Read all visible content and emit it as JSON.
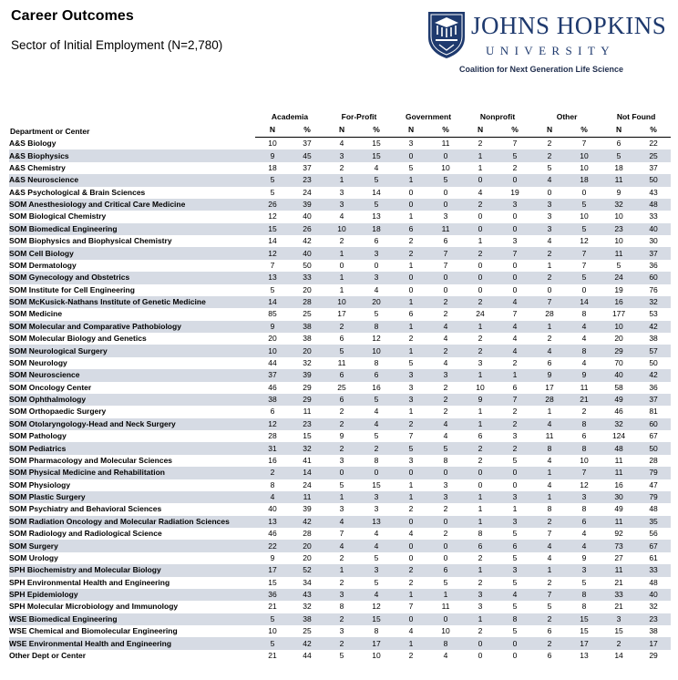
{
  "header": {
    "title": "Career Outcomes",
    "subtitle": "Sector of Initial Employment (N=2,780)"
  },
  "logo": {
    "name": "JOHNS HOPKINS",
    "university": "UNIVERSITY",
    "coalition": "Coalition for Next Generation Life Science",
    "shield_color": "#1f3a6e"
  },
  "colors": {
    "row_stripe": "#d6dbe4",
    "brand_navy": "#1f3a6e"
  },
  "table": {
    "dept_header": "Department or Center",
    "groups": [
      "Academia",
      "For-Profit",
      "Government",
      "Nonprofit",
      "Other",
      "Not Found"
    ],
    "sub_headers": [
      "N",
      "%",
      "N",
      "%",
      "N",
      "%",
      "N",
      "%",
      "N",
      "%",
      "N",
      "%"
    ],
    "rows": [
      {
        "dept": "A&S Biology",
        "values": [
          "10",
          "37",
          "4",
          "15",
          "3",
          "11",
          "2",
          "7",
          "2",
          "7",
          "6",
          "22"
        ]
      },
      {
        "dept": "A&S Biophysics",
        "values": [
          "9",
          "45",
          "3",
          "15",
          "0",
          "0",
          "1",
          "5",
          "2",
          "10",
          "5",
          "25"
        ]
      },
      {
        "dept": "A&S Chemistry",
        "values": [
          "18",
          "37",
          "2",
          "4",
          "5",
          "10",
          "1",
          "2",
          "5",
          "10",
          "18",
          "37"
        ]
      },
      {
        "dept": "A&S Neuroscience",
        "values": [
          "5",
          "23",
          "1",
          "5",
          "1",
          "5",
          "0",
          "0",
          "4",
          "18",
          "11",
          "50"
        ]
      },
      {
        "dept": "A&S Psychological & Brain Sciences",
        "values": [
          "5",
          "24",
          "3",
          "14",
          "0",
          "0",
          "4",
          "19",
          "0",
          "0",
          "9",
          "43"
        ]
      },
      {
        "dept": "SOM Anesthesiology and Critical Care Medicine",
        "values": [
          "26",
          "39",
          "3",
          "5",
          "0",
          "0",
          "2",
          "3",
          "3",
          "5",
          "32",
          "48"
        ]
      },
      {
        "dept": "SOM Biological Chemistry",
        "values": [
          "12",
          "40",
          "4",
          "13",
          "1",
          "3",
          "0",
          "0",
          "3",
          "10",
          "10",
          "33"
        ]
      },
      {
        "dept": "SOM Biomedical Engineering",
        "values": [
          "15",
          "26",
          "10",
          "18",
          "6",
          "11",
          "0",
          "0",
          "3",
          "5",
          "23",
          "40"
        ]
      },
      {
        "dept": "SOM Biophysics and Biophysical Chemistry",
        "values": [
          "14",
          "42",
          "2",
          "6",
          "2",
          "6",
          "1",
          "3",
          "4",
          "12",
          "10",
          "30"
        ]
      },
      {
        "dept": "SOM Cell Biology",
        "values": [
          "12",
          "40",
          "1",
          "3",
          "2",
          "7",
          "2",
          "7",
          "2",
          "7",
          "11",
          "37"
        ]
      },
      {
        "dept": "SOM Dermatology",
        "values": [
          "7",
          "50",
          "0",
          "0",
          "1",
          "7",
          "0",
          "0",
          "1",
          "7",
          "5",
          "36"
        ]
      },
      {
        "dept": "SOM Gynecology and Obstetrics",
        "values": [
          "13",
          "33",
          "1",
          "3",
          "0",
          "0",
          "0",
          "0",
          "2",
          "5",
          "24",
          "60"
        ]
      },
      {
        "dept": "SOM Institute for Cell Engineering",
        "values": [
          "5",
          "20",
          "1",
          "4",
          "0",
          "0",
          "0",
          "0",
          "0",
          "0",
          "19",
          "76"
        ]
      },
      {
        "dept": "SOM McKusick-Nathans Institute of Genetic Medicine",
        "values": [
          "14",
          "28",
          "10",
          "20",
          "1",
          "2",
          "2",
          "4",
          "7",
          "14",
          "16",
          "32"
        ]
      },
      {
        "dept": "SOM Medicine",
        "values": [
          "85",
          "25",
          "17",
          "5",
          "6",
          "2",
          "24",
          "7",
          "28",
          "8",
          "177",
          "53"
        ]
      },
      {
        "dept": "SOM Molecular and Comparative Pathobiology",
        "values": [
          "9",
          "38",
          "2",
          "8",
          "1",
          "4",
          "1",
          "4",
          "1",
          "4",
          "10",
          "42"
        ]
      },
      {
        "dept": "SOM Molecular Biology and Genetics",
        "values": [
          "20",
          "38",
          "6",
          "12",
          "2",
          "4",
          "2",
          "4",
          "2",
          "4",
          "20",
          "38"
        ]
      },
      {
        "dept": "SOM Neurological Surgery",
        "values": [
          "10",
          "20",
          "5",
          "10",
          "1",
          "2",
          "2",
          "4",
          "4",
          "8",
          "29",
          "57"
        ]
      },
      {
        "dept": "SOM Neurology",
        "values": [
          "44",
          "32",
          "11",
          "8",
          "5",
          "4",
          "3",
          "2",
          "6",
          "4",
          "70",
          "50"
        ]
      },
      {
        "dept": "SOM Neuroscience",
        "values": [
          "37",
          "39",
          "6",
          "6",
          "3",
          "3",
          "1",
          "1",
          "9",
          "9",
          "40",
          "42"
        ]
      },
      {
        "dept": "SOM Oncology Center",
        "values": [
          "46",
          "29",
          "25",
          "16",
          "3",
          "2",
          "10",
          "6",
          "17",
          "11",
          "58",
          "36"
        ]
      },
      {
        "dept": "SOM Ophthalmology",
        "values": [
          "38",
          "29",
          "6",
          "5",
          "3",
          "2",
          "9",
          "7",
          "28",
          "21",
          "49",
          "37"
        ]
      },
      {
        "dept": "SOM Orthopaedic Surgery",
        "values": [
          "6",
          "11",
          "2",
          "4",
          "1",
          "2",
          "1",
          "2",
          "1",
          "2",
          "46",
          "81"
        ]
      },
      {
        "dept": "SOM Otolaryngology-Head and Neck Surgery",
        "values": [
          "12",
          "23",
          "2",
          "4",
          "2",
          "4",
          "1",
          "2",
          "4",
          "8",
          "32",
          "60"
        ]
      },
      {
        "dept": "SOM Pathology",
        "values": [
          "28",
          "15",
          "9",
          "5",
          "7",
          "4",
          "6",
          "3",
          "11",
          "6",
          "124",
          "67"
        ]
      },
      {
        "dept": "SOM Pediatrics",
        "values": [
          "31",
          "32",
          "2",
          "2",
          "5",
          "5",
          "2",
          "2",
          "8",
          "8",
          "48",
          "50"
        ]
      },
      {
        "dept": "SOM Pharmacology and Molecular Sciences",
        "values": [
          "16",
          "41",
          "3",
          "8",
          "3",
          "8",
          "2",
          "5",
          "4",
          "10",
          "11",
          "28"
        ]
      },
      {
        "dept": "SOM Physical Medicine and Rehabilitation",
        "values": [
          "2",
          "14",
          "0",
          "0",
          "0",
          "0",
          "0",
          "0",
          "1",
          "7",
          "11",
          "79"
        ]
      },
      {
        "dept": "SOM Physiology",
        "values": [
          "8",
          "24",
          "5",
          "15",
          "1",
          "3",
          "0",
          "0",
          "4",
          "12",
          "16",
          "47"
        ]
      },
      {
        "dept": "SOM Plastic Surgery",
        "values": [
          "4",
          "11",
          "1",
          "3",
          "1",
          "3",
          "1",
          "3",
          "1",
          "3",
          "30",
          "79"
        ]
      },
      {
        "dept": "SOM Psychiatry and Behavioral Sciences",
        "values": [
          "40",
          "39",
          "3",
          "3",
          "2",
          "2",
          "1",
          "1",
          "8",
          "8",
          "49",
          "48"
        ]
      },
      {
        "dept": "SOM Radiation Oncology and Molecular Radiation Sciences",
        "values": [
          "13",
          "42",
          "4",
          "13",
          "0",
          "0",
          "1",
          "3",
          "2",
          "6",
          "11",
          "35"
        ]
      },
      {
        "dept": "SOM Radiology and Radiological Science",
        "values": [
          "46",
          "28",
          "7",
          "4",
          "4",
          "2",
          "8",
          "5",
          "7",
          "4",
          "92",
          "56"
        ]
      },
      {
        "dept": "SOM Surgery",
        "values": [
          "22",
          "20",
          "4",
          "4",
          "0",
          "0",
          "6",
          "6",
          "4",
          "4",
          "73",
          "67"
        ]
      },
      {
        "dept": "SOM Urology",
        "values": [
          "9",
          "20",
          "2",
          "5",
          "0",
          "0",
          "2",
          "5",
          "4",
          "9",
          "27",
          "61"
        ]
      },
      {
        "dept": "SPH Biochemistry and Molecular Biology",
        "values": [
          "17",
          "52",
          "1",
          "3",
          "2",
          "6",
          "1",
          "3",
          "1",
          "3",
          "11",
          "33"
        ]
      },
      {
        "dept": "SPH Environmental Health and Engineering",
        "values": [
          "15",
          "34",
          "2",
          "5",
          "2",
          "5",
          "2",
          "5",
          "2",
          "5",
          "21",
          "48"
        ]
      },
      {
        "dept": "SPH Epidemiology",
        "values": [
          "36",
          "43",
          "3",
          "4",
          "1",
          "1",
          "3",
          "4",
          "7",
          "8",
          "33",
          "40"
        ]
      },
      {
        "dept": "SPH Molecular Microbiology and Immunology",
        "values": [
          "21",
          "32",
          "8",
          "12",
          "7",
          "11",
          "3",
          "5",
          "5",
          "8",
          "21",
          "32"
        ]
      },
      {
        "dept": "WSE Biomedical Engineering",
        "values": [
          "5",
          "38",
          "2",
          "15",
          "0",
          "0",
          "1",
          "8",
          "2",
          "15",
          "3",
          "23"
        ]
      },
      {
        "dept": "WSE Chemical and Biomolecular Engineering",
        "values": [
          "10",
          "25",
          "3",
          "8",
          "4",
          "10",
          "2",
          "5",
          "6",
          "15",
          "15",
          "38"
        ]
      },
      {
        "dept": "WSE Environmental Health and Engineering",
        "values": [
          "5",
          "42",
          "2",
          "17",
          "1",
          "8",
          "0",
          "0",
          "2",
          "17",
          "2",
          "17"
        ]
      },
      {
        "dept": "Other Dept or Center",
        "values": [
          "21",
          "44",
          "5",
          "10",
          "2",
          "4",
          "0",
          "0",
          "6",
          "13",
          "14",
          "29"
        ]
      }
    ]
  }
}
